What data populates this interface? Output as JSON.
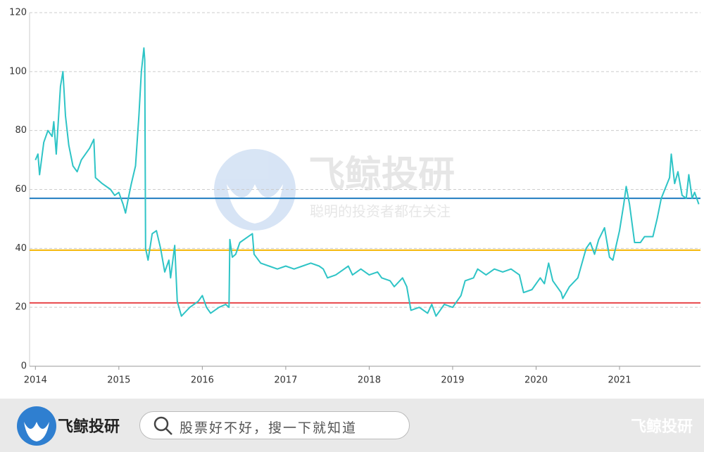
{
  "chart_data": {
    "type": "line",
    "x": [
      2014.0,
      2014.03,
      2014.05,
      2014.1,
      2014.15,
      2014.2,
      2014.22,
      2014.25,
      2014.3,
      2014.33,
      2014.36,
      2014.4,
      2014.45,
      2014.5,
      2014.55,
      2014.6,
      2014.65,
      2014.7,
      2014.72,
      2014.8,
      2014.9,
      2014.95,
      2015.0,
      2015.05,
      2015.08,
      2015.12,
      2015.15,
      2015.2,
      2015.24,
      2015.27,
      2015.3,
      2015.31,
      2015.32,
      2015.35,
      2015.4,
      2015.45,
      2015.5,
      2015.55,
      2015.6,
      2015.62,
      2015.67,
      2015.7,
      2015.75,
      2015.85,
      2015.95,
      2016.0,
      2016.05,
      2016.1,
      2016.2,
      2016.28,
      2016.32,
      2016.33,
      2016.36,
      2016.4,
      2016.45,
      2016.55,
      2016.6,
      2016.62,
      2016.7,
      2016.8,
      2016.9,
      2017.0,
      2017.1,
      2017.2,
      2017.3,
      2017.4,
      2017.45,
      2017.5,
      2017.6,
      2017.7,
      2017.75,
      2017.8,
      2017.9,
      2018.0,
      2018.1,
      2018.15,
      2018.25,
      2018.3,
      2018.4,
      2018.45,
      2018.5,
      2018.6,
      2018.7,
      2018.75,
      2018.8,
      2018.85,
      2018.9,
      2019.0,
      2019.1,
      2019.15,
      2019.25,
      2019.3,
      2019.4,
      2019.5,
      2019.6,
      2019.7,
      2019.8,
      2019.85,
      2019.95,
      2020.05,
      2020.1,
      2020.15,
      2020.2,
      2020.3,
      2020.32,
      2020.4,
      2020.5,
      2020.6,
      2020.65,
      2020.7,
      2020.75,
      2020.82,
      2020.88,
      2020.92,
      2021.0,
      2021.05,
      2021.08,
      2021.12,
      2021.18,
      2021.25,
      2021.3,
      2021.4,
      2021.45,
      2021.5,
      2021.6,
      2021.62,
      2021.66,
      2021.7,
      2021.75,
      2021.8,
      2021.83,
      2021.87,
      2021.9,
      2021.95
    ],
    "series": [
      {
        "color": "#2ec4c6",
        "values": [
          70,
          72,
          65,
          76,
          80,
          78,
          83,
          72,
          95,
          100,
          85,
          75,
          68,
          66,
          70,
          72,
          74,
          77,
          64,
          62,
          60,
          58,
          59,
          55,
          52,
          58,
          62,
          68,
          85,
          100,
          108,
          104,
          40,
          36,
          45,
          46,
          40,
          32,
          36,
          30,
          41,
          22,
          17,
          20,
          22,
          24,
          20,
          18,
          20,
          21,
          20,
          43,
          37,
          38,
          42,
          44,
          45,
          38,
          35,
          34,
          33,
          34,
          33,
          34,
          35,
          34,
          33,
          30,
          31,
          33,
          34,
          31,
          33,
          31,
          32,
          30,
          29,
          27,
          30,
          27,
          19,
          20,
          18,
          21,
          17,
          19,
          21,
          20,
          24,
          29,
          30,
          33,
          31,
          33,
          32,
          33,
          31,
          25,
          26,
          30,
          28,
          35,
          29,
          25,
          23,
          27,
          30,
          40,
          42,
          38,
          43,
          47,
          37,
          36,
          46,
          55,
          61,
          55,
          42,
          42,
          44,
          44,
          50,
          57,
          64,
          72,
          62,
          66,
          58,
          57,
          65,
          57,
          59,
          55
        ]
      }
    ],
    "reference_lines": [
      {
        "value": 57,
        "color": "#1f7bc0"
      },
      {
        "value": 39.4,
        "color": "#f5b400"
      },
      {
        "value": 21.5,
        "color": "#e8454a"
      }
    ],
    "xlim": [
      2013.93,
      2021.97
    ],
    "xticks": [
      2014,
      2015,
      2016,
      2017,
      2018,
      2019,
      2020,
      2021
    ],
    "ylim": [
      0,
      120
    ],
    "yticks": [
      0,
      20,
      40,
      60,
      80,
      100,
      120
    ],
    "grid": true
  },
  "watermark": {
    "brand": "飞鲸投研",
    "slogan": "聪明的投资者都在关注"
  },
  "footer": {
    "brand": "飞鲸投研",
    "search_placeholder": "股票好不好，搜一下就知道",
    "right_brand": "飞鲸投研"
  }
}
